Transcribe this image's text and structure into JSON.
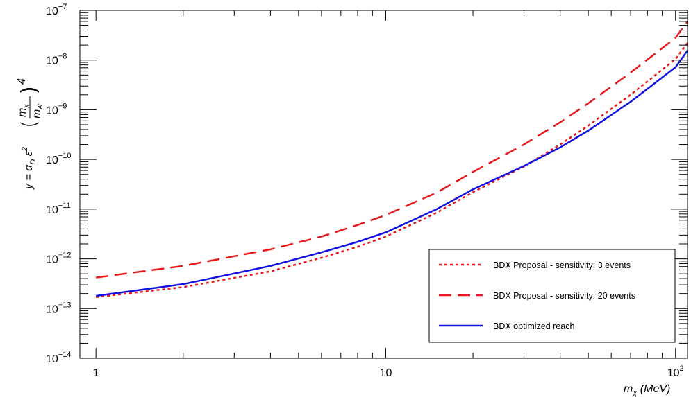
{
  "chart_data": {
    "type": "line",
    "x_scale": "log",
    "y_scale": "log",
    "xlim": [
      0.88,
      110
    ],
    "ylim": [
      1e-14,
      1e-07
    ],
    "xlabel": "m_χ (MeV)",
    "ylabel": "y = α_D ε² (m_χ / m_A')⁴",
    "x_ticks": [
      {
        "value": 1,
        "label": "1"
      },
      {
        "value": 10,
        "label": "10"
      },
      {
        "value": 100,
        "label": "10",
        "sup": "2"
      }
    ],
    "y_ticks": [
      {
        "value": 1e-14,
        "label": "10",
        "sup": "−14"
      },
      {
        "value": 1e-13,
        "label": "10",
        "sup": "−13"
      },
      {
        "value": 1e-12,
        "label": "10",
        "sup": "−12"
      },
      {
        "value": 1e-11,
        "label": "10",
        "sup": "−11"
      },
      {
        "value": 1e-10,
        "label": "10",
        "sup": "−10"
      },
      {
        "value": 1e-09,
        "label": "10",
        "sup": "−9"
      },
      {
        "value": 1e-08,
        "label": "10",
        "sup": "−8"
      },
      {
        "value": 1e-07,
        "label": "10",
        "sup": "−7"
      }
    ],
    "legend_position": "bottom-right",
    "series": [
      {
        "name": "BDX Proposal - sensitivity: 3 events",
        "color": "#e8191b",
        "style": "dotted",
        "points": [
          [
            1,
            1.7e-13
          ],
          [
            2,
            2.7e-13
          ],
          [
            4,
            5.6e-13
          ],
          [
            6,
            1.05e-12
          ],
          [
            8,
            1.75e-12
          ],
          [
            10,
            2.8e-12
          ],
          [
            15,
            8.5e-12
          ],
          [
            20,
            2.2e-11
          ],
          [
            30,
            7.2e-11
          ],
          [
            40,
            2e-10
          ],
          [
            50,
            4.8e-10
          ],
          [
            70,
            2e-09
          ],
          [
            100,
            1.05e-08
          ],
          [
            110,
            2.2e-08
          ]
        ]
      },
      {
        "name": "BDX Proposal - sensitivity: 20 events",
        "color": "#e8191b",
        "style": "dashed",
        "points": [
          [
            1,
            4.2e-13
          ],
          [
            2,
            7.2e-13
          ],
          [
            4,
            1.55e-12
          ],
          [
            6,
            2.8e-12
          ],
          [
            8,
            4.8e-12
          ],
          [
            10,
            7.6e-12
          ],
          [
            15,
            2.15e-11
          ],
          [
            20,
            5.6e-11
          ],
          [
            30,
            2e-10
          ],
          [
            40,
            5.6e-10
          ],
          [
            50,
            1.35e-09
          ],
          [
            70,
            5.6e-09
          ],
          [
            100,
            2.8e-08
          ],
          [
            110,
            6e-08
          ]
        ]
      },
      {
        "name": "BDX optimized reach",
        "color": "#1010e0",
        "style": "solid",
        "points": [
          [
            1,
            1.8e-13
          ],
          [
            2,
            3.1e-13
          ],
          [
            4,
            7.2e-13
          ],
          [
            6,
            1.35e-12
          ],
          [
            8,
            2.2e-12
          ],
          [
            10,
            3.4e-12
          ],
          [
            15,
            1e-11
          ],
          [
            20,
            2.5e-11
          ],
          [
            30,
            7.4e-11
          ],
          [
            40,
            1.75e-10
          ],
          [
            50,
            3.8e-10
          ],
          [
            70,
            1.45e-09
          ],
          [
            100,
            7.2e-09
          ],
          [
            110,
            1.55e-08
          ]
        ]
      }
    ]
  }
}
